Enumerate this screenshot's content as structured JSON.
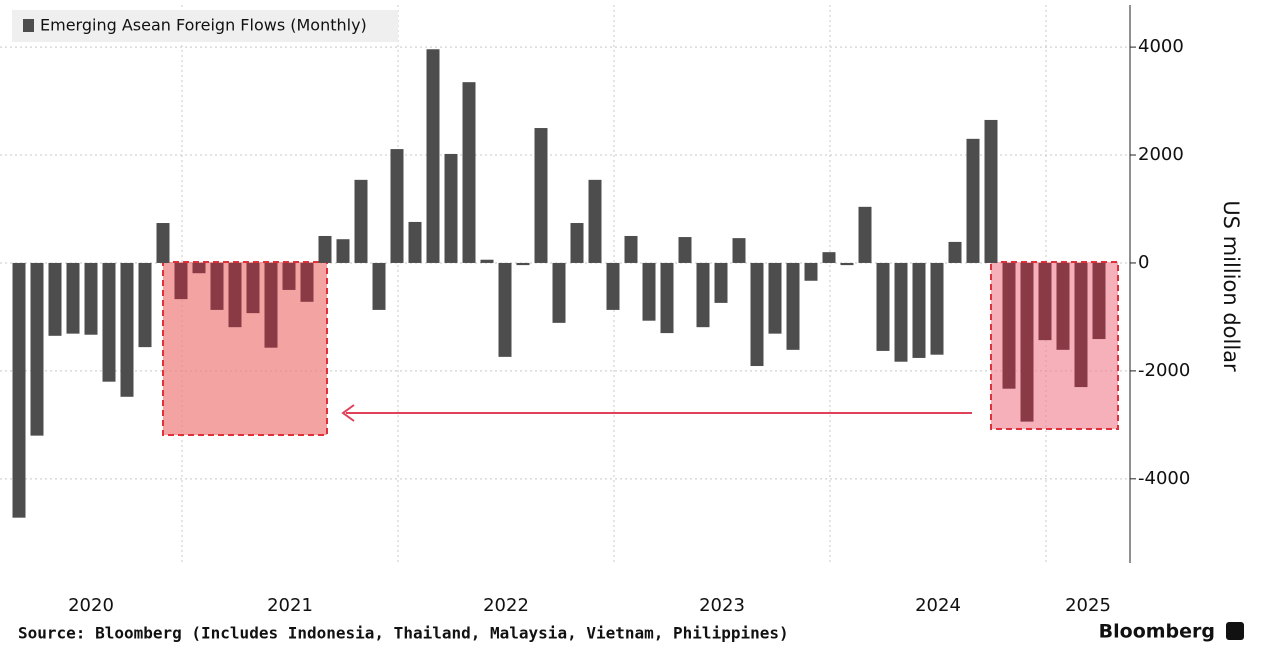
{
  "chart_data": {
    "type": "bar",
    "title": "Emerging Asean Foreign Flows (Monthly)",
    "y_axis_label": "US million dollar",
    "source": "Source: Bloomberg (Includes Indonesia, Thailand, Malaysia, Vietnam, Philippines)",
    "brand": "Bloomberg",
    "year_labels": [
      "2020",
      "2021",
      "2022",
      "2023",
      "2024",
      "2025"
    ],
    "values": [
      -4720,
      -3200,
      -1350,
      -1310,
      -1330,
      -2200,
      -2480,
      -1560,
      740,
      -670,
      -190,
      -870,
      -1190,
      -930,
      -1570,
      -500,
      -720,
      500,
      440,
      1540,
      -870,
      2110,
      760,
      3960,
      2020,
      3350,
      60,
      -1740,
      -40,
      2500,
      -1110,
      740,
      1540,
      -870,
      500,
      -1070,
      -1300,
      480,
      -1190,
      -740,
      460,
      -1910,
      -1310,
      -1610,
      -330,
      200,
      -40,
      1040,
      -1630,
      -1830,
      -1760,
      -1700,
      390,
      2300,
      2650,
      -2330,
      -2940,
      -1430,
      -1610,
      -2300,
      -1410
    ],
    "colors": [
      "#4d4d4d",
      "#4d4d4d",
      "#4d4d4d",
      "#4d4d4d",
      "#4d4d4d",
      "#4d4d4d",
      "#4d4d4d",
      "#4d4d4d",
      "#4d4d4d",
      "#8a3a45",
      "#8a3a45",
      "#8a3a45",
      "#8a3a45",
      "#8a3a45",
      "#8a3a45",
      "#8a3a45",
      "#8a3a45",
      "#4d4d4d",
      "#4d4d4d",
      "#4d4d4d",
      "#4d4d4d",
      "#4d4d4d",
      "#4d4d4d",
      "#4d4d4d",
      "#4d4d4d",
      "#4d4d4d",
      "#4d4d4d",
      "#4d4d4d",
      "#4d4d4d",
      "#4d4d4d",
      "#4d4d4d",
      "#4d4d4d",
      "#4d4d4d",
      "#4d4d4d",
      "#4d4d4d",
      "#4d4d4d",
      "#4d4d4d",
      "#4d4d4d",
      "#4d4d4d",
      "#4d4d4d",
      "#4d4d4d",
      "#4d4d4d",
      "#4d4d4d",
      "#4d4d4d",
      "#4d4d4d",
      "#4d4d4d",
      "#4d4d4d",
      "#4d4d4d",
      "#4d4d4d",
      "#4d4d4d",
      "#4d4d4d",
      "#4d4d4d",
      "#4d4d4d",
      "#4d4d4d",
      "#4d4d4d",
      "#8a3a45",
      "#8a3a45",
      "#8a3a45",
      "#8a3a45",
      "#8a3a45",
      "#8a3a45"
    ],
    "ylim": [
      -5560,
      4780
    ],
    "yticks": [
      4000,
      2000,
      0,
      -2000,
      -4000
    ],
    "grid": true
  }
}
